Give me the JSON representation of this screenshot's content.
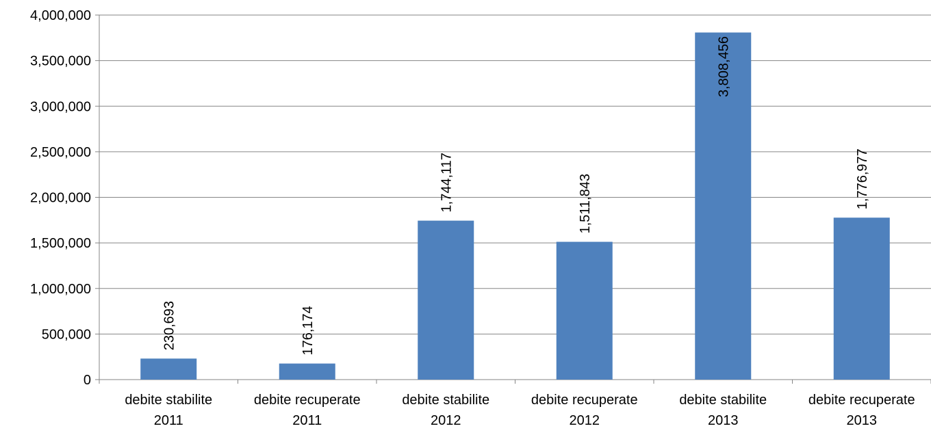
{
  "chart_data": {
    "type": "bar",
    "categories": [
      [
        "debite stabilite",
        "2011"
      ],
      [
        "debite recuperate",
        "2011"
      ],
      [
        "debite stabilite",
        "2012"
      ],
      [
        "debite recuperate",
        "2012"
      ],
      [
        "debite stabilite",
        "2013"
      ],
      [
        "debite recuperate",
        "2013"
      ]
    ],
    "values": [
      230693,
      176174,
      1744117,
      1511843,
      3808456,
      1776977
    ],
    "data_labels": [
      "230,693",
      "176,174",
      "1,744,117",
      "1,511,843",
      "3,808,456",
      "1,776,977"
    ],
    "ylim": [
      0,
      4000000
    ],
    "yticks": [
      0,
      500000,
      1000000,
      1500000,
      2000000,
      2500000,
      3000000,
      3500000,
      4000000
    ],
    "ytick_labels": [
      "0",
      "500,000",
      "1,000,000",
      "1,500,000",
      "2,000,000",
      "2,500,000",
      "3,000,000",
      "3,500,000",
      "4,000,000"
    ],
    "title": "",
    "xlabel": "",
    "ylabel": "",
    "grid": true,
    "legend": "none",
    "bar_color": "#4F81BD",
    "data_label_orientation": "vertical"
  }
}
